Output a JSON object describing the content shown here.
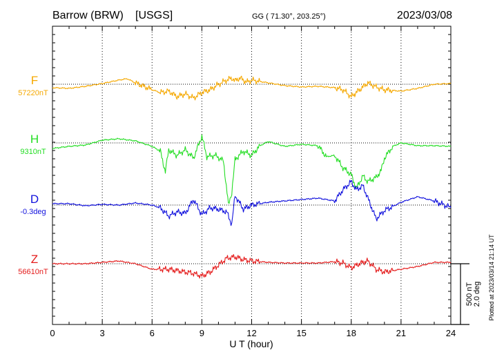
{
  "chart_data": {
    "type": "line",
    "station": "Barrow (BRW)",
    "source": "[USGS]",
    "coords": "GG ( 71.30°, 203.25°)",
    "date": "2023/03/08",
    "xlabel": "U T (hour)",
    "xlim": [
      0,
      24
    ],
    "xticks": [
      0,
      3,
      6,
      9,
      12,
      15,
      18,
      21,
      24
    ],
    "grid": true,
    "scale_bar": {
      "line1": "500 nT",
      "line2": "2.0 deg"
    },
    "plotted_note": "Plotted at 2023/03/14 21:14 UT",
    "series": [
      {
        "name": "F",
        "baseline": "57220nT",
        "color": "#f5a800",
        "points": [
          [
            0,
            5
          ],
          [
            1,
            6
          ],
          [
            2,
            3
          ],
          [
            3,
            -1
          ],
          [
            4,
            -6
          ],
          [
            4.5,
            -8
          ],
          [
            5,
            -2
          ],
          [
            6,
            8
          ],
          [
            6.5,
            12
          ],
          [
            7,
            10
          ],
          [
            7.5,
            18
          ],
          [
            8,
            14
          ],
          [
            8.5,
            20
          ],
          [
            9,
            12
          ],
          [
            9.5,
            8
          ],
          [
            10,
            0
          ],
          [
            10.5,
            -6
          ],
          [
            10.8,
            -9
          ],
          [
            11,
            -5
          ],
          [
            11.3,
            -9
          ],
          [
            11.7,
            -3
          ],
          [
            12,
            -6
          ],
          [
            13,
            -2
          ],
          [
            14,
            2
          ],
          [
            15,
            4
          ],
          [
            16,
            3
          ],
          [
            17,
            5
          ],
          [
            17.5,
            8
          ],
          [
            18,
            18
          ],
          [
            18.3,
            12
          ],
          [
            18.7,
            4
          ],
          [
            19,
            -2
          ],
          [
            19.5,
            4
          ],
          [
            20,
            8
          ],
          [
            21,
            10
          ],
          [
            22,
            6
          ],
          [
            23,
            0
          ],
          [
            24,
            -1
          ]
        ]
      },
      {
        "name": "H",
        "baseline": "9310nT",
        "color": "#22dd22",
        "points": [
          [
            0,
            8
          ],
          [
            1,
            5
          ],
          [
            2,
            3
          ],
          [
            3,
            -4
          ],
          [
            4,
            -6
          ],
          [
            5,
            -3
          ],
          [
            6,
            5
          ],
          [
            6.5,
            12
          ],
          [
            6.8,
            42
          ],
          [
            7,
            10
          ],
          [
            7.5,
            18
          ],
          [
            8,
            10
          ],
          [
            8.5,
            22
          ],
          [
            9,
            -10
          ],
          [
            9.3,
            20
          ],
          [
            9.8,
            18
          ],
          [
            10.3,
            26
          ],
          [
            10.6,
            90
          ],
          [
            10.8,
            72
          ],
          [
            11,
            24
          ],
          [
            11.5,
            12
          ],
          [
            12,
            18
          ],
          [
            12.5,
            4
          ],
          [
            13,
            -2
          ],
          [
            14,
            5
          ],
          [
            15,
            2
          ],
          [
            16,
            4
          ],
          [
            16.5,
            20
          ],
          [
            17,
            18
          ],
          [
            17.5,
            36
          ],
          [
            18,
            46
          ],
          [
            18.3,
            66
          ],
          [
            18.7,
            48
          ],
          [
            19,
            56
          ],
          [
            19.5,
            50
          ],
          [
            19.8,
            40
          ],
          [
            20,
            22
          ],
          [
            20.5,
            5
          ],
          [
            21,
            0
          ],
          [
            22,
            4
          ],
          [
            23,
            4
          ],
          [
            24,
            5
          ]
        ]
      },
      {
        "name": "D",
        "baseline": "-0.3deg",
        "color": "#1111dd",
        "points": [
          [
            0,
            -2
          ],
          [
            1,
            -2
          ],
          [
            2,
            1
          ],
          [
            3,
            -1
          ],
          [
            4,
            0
          ],
          [
            5,
            -3
          ],
          [
            6,
            0
          ],
          [
            6.5,
            4
          ],
          [
            7,
            16
          ],
          [
            7.5,
            10
          ],
          [
            8,
            12
          ],
          [
            8.5,
            -8
          ],
          [
            9,
            14
          ],
          [
            9.5,
            4
          ],
          [
            10,
            6
          ],
          [
            10.5,
            10
          ],
          [
            10.8,
            28
          ],
          [
            11,
            -14
          ],
          [
            11.5,
            6
          ],
          [
            12,
            0
          ],
          [
            13,
            -4
          ],
          [
            14,
            -6
          ],
          [
            15,
            -8
          ],
          [
            16,
            -10
          ],
          [
            17,
            -6
          ],
          [
            17.5,
            -22
          ],
          [
            18,
            -34
          ],
          [
            18.3,
            -22
          ],
          [
            18.7,
            -28
          ],
          [
            19,
            -10
          ],
          [
            19.5,
            20
          ],
          [
            20,
            8
          ],
          [
            20.5,
            2
          ],
          [
            21,
            -4
          ],
          [
            22,
            -12
          ],
          [
            23,
            -6
          ],
          [
            24,
            4
          ]
        ]
      },
      {
        "name": "Z",
        "baseline": "56610nT",
        "color": "#e41a1a",
        "points": [
          [
            0,
            0
          ],
          [
            2,
            0
          ],
          [
            3,
            -2
          ],
          [
            4,
            -4
          ],
          [
            5,
            0
          ],
          [
            6,
            8
          ],
          [
            7,
            8
          ],
          [
            7.5,
            10
          ],
          [
            8,
            12
          ],
          [
            8.5,
            14
          ],
          [
            9,
            18
          ],
          [
            9.5,
            12
          ],
          [
            10,
            2
          ],
          [
            10.5,
            -8
          ],
          [
            11,
            -10
          ],
          [
            11.5,
            -6
          ],
          [
            12,
            -4
          ],
          [
            13,
            -2
          ],
          [
            14,
            -1
          ],
          [
            15,
            -1
          ],
          [
            16,
            -1
          ],
          [
            17,
            -3
          ],
          [
            17.5,
            -1
          ],
          [
            18,
            6
          ],
          [
            18.3,
            2
          ],
          [
            18.7,
            -2
          ],
          [
            19,
            -4
          ],
          [
            19.5,
            8
          ],
          [
            20,
            12
          ],
          [
            21,
            8
          ],
          [
            22,
            4
          ],
          [
            23,
            -2
          ],
          [
            24,
            -2
          ]
        ]
      }
    ]
  }
}
